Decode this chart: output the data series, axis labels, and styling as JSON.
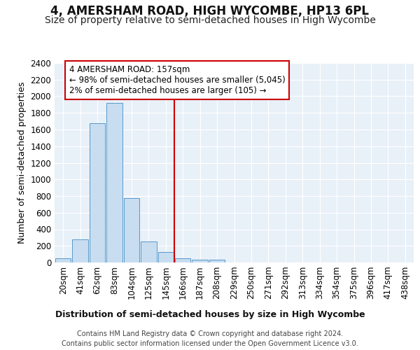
{
  "title": "4, AMERSHAM ROAD, HIGH WYCOMBE, HP13 6PL",
  "subtitle": "Size of property relative to semi-detached houses in High Wycombe",
  "xlabel": "Distribution of semi-detached houses by size in High Wycombe",
  "ylabel": "Number of semi-detached properties",
  "footer1": "Contains HM Land Registry data © Crown copyright and database right 2024.",
  "footer2": "Contains public sector information licensed under the Open Government Licence v3.0.",
  "bar_labels": [
    "20sqm",
    "41sqm",
    "62sqm",
    "83sqm",
    "104sqm",
    "125sqm",
    "145sqm",
    "166sqm",
    "187sqm",
    "208sqm",
    "229sqm",
    "250sqm",
    "271sqm",
    "292sqm",
    "313sqm",
    "334sqm",
    "354sqm",
    "375sqm",
    "396sqm",
    "417sqm",
    "438sqm"
  ],
  "bar_values": [
    50,
    275,
    1680,
    1920,
    775,
    255,
    130,
    50,
    30,
    30,
    0,
    0,
    0,
    0,
    0,
    0,
    0,
    0,
    0,
    0,
    0
  ],
  "bar_color": "#c8ddf0",
  "bar_edge_color": "#5599cc",
  "vline_color": "#cc0000",
  "vline_pos": 6.5,
  "annotation_line1": "4 AMERSHAM ROAD: 157sqm",
  "annotation_line2": "← 98% of semi-detached houses are smaller (5,045)",
  "annotation_line3": "2% of semi-detached houses are larger (105) →",
  "annotation_box_color": "#cc0000",
  "ylim": [
    0,
    2400
  ],
  "yticks": [
    0,
    200,
    400,
    600,
    800,
    1000,
    1200,
    1400,
    1600,
    1800,
    2000,
    2200,
    2400
  ],
  "fig_bg_color": "#ffffff",
  "plot_bg_color": "#e8f0f8",
  "grid_color": "#ffffff",
  "title_fontsize": 12,
  "subtitle_fontsize": 10,
  "label_fontsize": 9,
  "tick_fontsize": 8.5,
  "footer_fontsize": 7
}
